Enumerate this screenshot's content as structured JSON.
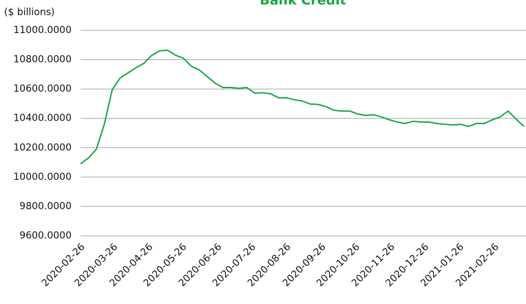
{
  "chart_data": {
    "type": "line",
    "title": "Bank Credit",
    "y_label": "($ billions)",
    "title_color": "#1aa543",
    "x": [
      "2020-02-26",
      "2020-03-04",
      "2020-03-11",
      "2020-03-18",
      "2020-03-25",
      "2020-04-01",
      "2020-04-08",
      "2020-04-15",
      "2020-04-22",
      "2020-04-29",
      "2020-05-06",
      "2020-05-13",
      "2020-05-20",
      "2020-05-27",
      "2020-06-03",
      "2020-06-10",
      "2020-06-17",
      "2020-06-24",
      "2020-07-01",
      "2020-07-08",
      "2020-07-15",
      "2020-07-22",
      "2020-07-29",
      "2020-08-05",
      "2020-08-12",
      "2020-08-19",
      "2020-08-26",
      "2020-09-02",
      "2020-09-09",
      "2020-09-16",
      "2020-09-23",
      "2020-09-30",
      "2020-10-07",
      "2020-10-14",
      "2020-10-21",
      "2020-10-28",
      "2020-11-04",
      "2020-11-11",
      "2020-11-18",
      "2020-11-25",
      "2020-12-02",
      "2020-12-09",
      "2020-12-16",
      "2020-12-23",
      "2020-12-30",
      "2021-01-06",
      "2021-01-13",
      "2021-01-20",
      "2021-01-27",
      "2021-02-03",
      "2021-02-10",
      "2021-02-17",
      "2021-02-24",
      "2021-03-03",
      "2021-03-10",
      "2021-03-17",
      "2021-03-24"
    ],
    "values": [
      10090,
      10130,
      10190,
      10360,
      10595,
      10675,
      10710,
      10745,
      10775,
      10830,
      10860,
      10865,
      10830,
      10810,
      10755,
      10730,
      10685,
      10640,
      10610,
      10610,
      10605,
      10610,
      10572,
      10575,
      10568,
      10540,
      10540,
      10527,
      10518,
      10498,
      10495,
      10480,
      10455,
      10450,
      10450,
      10430,
      10420,
      10425,
      10410,
      10390,
      10375,
      10365,
      10380,
      10375,
      10375,
      10365,
      10360,
      10355,
      10360,
      10345,
      10365,
      10365,
      10390,
      10410,
      10450,
      10395,
      10345
    ],
    "color": "#1aa543",
    "xlim": [
      "2020-02-26",
      "2021-03-24"
    ],
    "xticks": [
      "2020-02-26",
      "2020-03-26",
      "2020-04-26",
      "2020-05-26",
      "2020-06-26",
      "2020-07-26",
      "2020-08-26",
      "2020-09-26",
      "2020-10-26",
      "2020-11-26",
      "2020-12-26",
      "2021-01-26",
      "2021-02-26"
    ],
    "ylim": [
      9600,
      11000
    ],
    "yticks": [
      {
        "value": 9600,
        "label": "9600.0000"
      },
      {
        "value": 9800,
        "label": "9800.0000"
      },
      {
        "value": 10000,
        "label": "10000.0000"
      },
      {
        "value": 10200,
        "label": "10200.0000"
      },
      {
        "value": 10400,
        "label": "10400.0000"
      },
      {
        "value": 10600,
        "label": "10600.0000"
      },
      {
        "value": 10800,
        "label": "10800.0000"
      },
      {
        "value": 11000,
        "label": "11000.0000"
      }
    ],
    "grid": true
  }
}
